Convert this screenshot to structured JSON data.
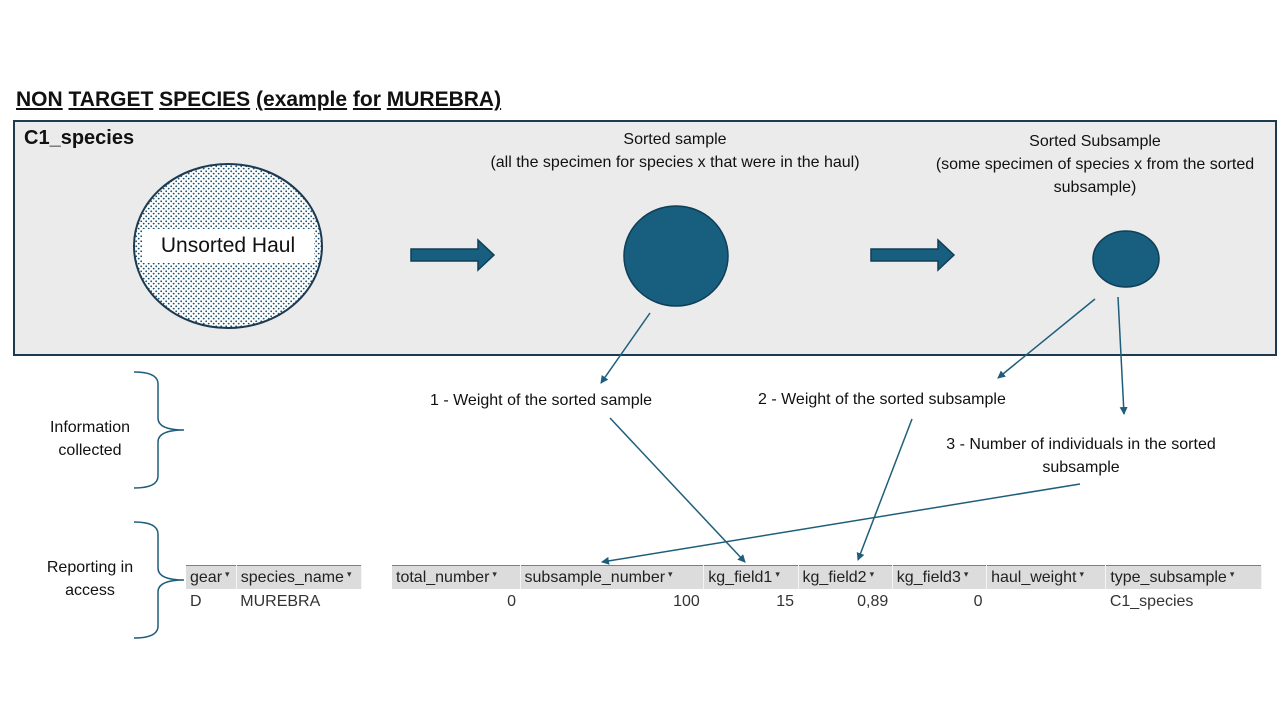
{
  "title": {
    "words": [
      "NON",
      "TARGET",
      "SPECIES",
      "(example",
      "for",
      "MUREBRA)"
    ]
  },
  "panel": {
    "label": "C1_species",
    "unsorted_haul": "Unsorted Haul",
    "sorted_sample": {
      "title": "Sorted sample",
      "desc": "(all the specimen for species x that were in the haul)"
    },
    "sorted_subsample": {
      "title": "Sorted Subsample",
      "desc": "(some specimen of species x from the sorted subsample)"
    }
  },
  "info": {
    "label": "Information collected",
    "item1": "1 - Weight of the sorted sample",
    "item2": "2 - Weight of the sorted subsample",
    "item3": "3 - Number of individuals in the sorted subsample"
  },
  "reporting": {
    "label": "Reporting in access",
    "species_table": {
      "headers": [
        "gear",
        "species_name"
      ],
      "row": [
        "D",
        "MUREBRA"
      ]
    },
    "fields_table": {
      "headers": [
        "total_number",
        "subsample_number",
        "kg_field1",
        "kg_field2",
        "kg_field3",
        "haul_weight",
        "type_subsample"
      ],
      "row": [
        "0",
        "100",
        "15",
        "0,89",
        "0",
        "",
        "C1_species"
      ]
    }
  },
  "colors": {
    "accent": "#175e7f",
    "panel_bg": "#ebebeb",
    "arrow": "#1f5e7a"
  }
}
